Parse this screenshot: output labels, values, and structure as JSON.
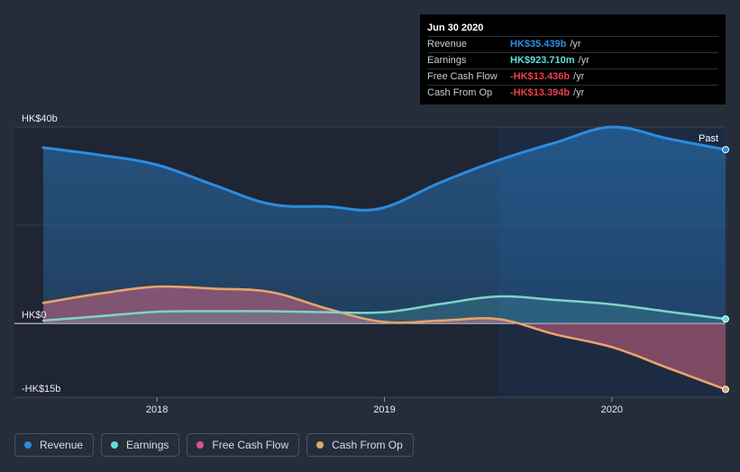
{
  "chart_data": {
    "type": "area",
    "y_unit": "HK$ billions",
    "ylim": [
      -15,
      40
    ],
    "y_ticks": [
      {
        "value": 40,
        "label": "HK$40b"
      },
      {
        "value": 0,
        "label": "HK$0"
      },
      {
        "value": -15,
        "label": "-HK$15b"
      }
    ],
    "x_ticks": [
      {
        "value": 2018.0,
        "label": "2018"
      },
      {
        "value": 2019.0,
        "label": "2019"
      },
      {
        "value": 2020.0,
        "label": "2020"
      }
    ],
    "xlim": [
      2017.5,
      2020.5
    ],
    "past_start": 2019.5,
    "past_label": "Past",
    "series": [
      {
        "name": "Revenue",
        "color": "#2b8ce0",
        "points": [
          [
            2017.5,
            35.8
          ],
          [
            2017.75,
            34.3
          ],
          [
            2018.0,
            32.3
          ],
          [
            2018.25,
            28.2
          ],
          [
            2018.5,
            24.3
          ],
          [
            2018.75,
            23.8
          ],
          [
            2018.98,
            23.4
          ],
          [
            2019.25,
            28.8
          ],
          [
            2019.5,
            33.2
          ],
          [
            2019.75,
            36.8
          ],
          [
            2020.0,
            40.0
          ],
          [
            2020.25,
            37.6
          ],
          [
            2020.5,
            35.4
          ]
        ]
      },
      {
        "name": "Earnings",
        "color": "#5ce0d6",
        "points": [
          [
            2017.5,
            0.6
          ],
          [
            2017.75,
            1.5
          ],
          [
            2018.0,
            2.4
          ],
          [
            2018.25,
            2.5
          ],
          [
            2018.5,
            2.5
          ],
          [
            2018.75,
            2.3
          ],
          [
            2019.0,
            2.3
          ],
          [
            2019.25,
            4.0
          ],
          [
            2019.5,
            5.5
          ],
          [
            2019.75,
            4.8
          ],
          [
            2020.0,
            3.9
          ],
          [
            2020.25,
            2.4
          ],
          [
            2020.5,
            0.92
          ]
        ]
      },
      {
        "name": "Free Cash Flow",
        "color": "#e2508f",
        "points": [
          [
            2017.5,
            4.2
          ],
          [
            2017.75,
            6.1
          ],
          [
            2018.0,
            7.5
          ],
          [
            2018.25,
            7.1
          ],
          [
            2018.5,
            6.4
          ],
          [
            2018.75,
            3.0
          ],
          [
            2019.0,
            0.3
          ],
          [
            2019.25,
            0.6
          ],
          [
            2019.5,
            0.9
          ],
          [
            2019.75,
            -2.2
          ],
          [
            2020.0,
            -4.8
          ],
          [
            2020.25,
            -9.1
          ],
          [
            2020.5,
            -13.4
          ]
        ]
      },
      {
        "name": "Cash From Op",
        "color": "#e4a667",
        "points": [
          [
            2017.5,
            4.2
          ],
          [
            2017.75,
            6.1
          ],
          [
            2018.0,
            7.5
          ],
          [
            2018.25,
            7.1
          ],
          [
            2018.5,
            6.4
          ],
          [
            2018.75,
            3.0
          ],
          [
            2019.0,
            0.3
          ],
          [
            2019.25,
            0.6
          ],
          [
            2019.5,
            0.9
          ],
          [
            2019.75,
            -2.2
          ],
          [
            2020.0,
            -4.8
          ],
          [
            2020.25,
            -9.1
          ],
          [
            2020.5,
            -13.4
          ]
        ]
      }
    ]
  },
  "tooltip": {
    "date": "Jun 30 2020",
    "rows": [
      {
        "label": "Revenue",
        "value": "HK$35.439b",
        "unit": "/yr",
        "color": "#2b8ce0"
      },
      {
        "label": "Earnings",
        "value": "HK$923.710m",
        "unit": "/yr",
        "color": "#5ce0d6"
      },
      {
        "label": "Free Cash Flow",
        "value": "-HK$13.436b",
        "unit": "/yr",
        "color": "#e8414b"
      },
      {
        "label": "Cash From Op",
        "value": "-HK$13.394b",
        "unit": "/yr",
        "color": "#e8414b"
      }
    ]
  },
  "legend": [
    {
      "label": "Revenue",
      "color": "#2b8ce0"
    },
    {
      "label": "Earnings",
      "color": "#5ce0d6"
    },
    {
      "label": "Free Cash Flow",
      "color": "#e2508f"
    },
    {
      "label": "Cash From Op",
      "color": "#e4a667"
    }
  ]
}
